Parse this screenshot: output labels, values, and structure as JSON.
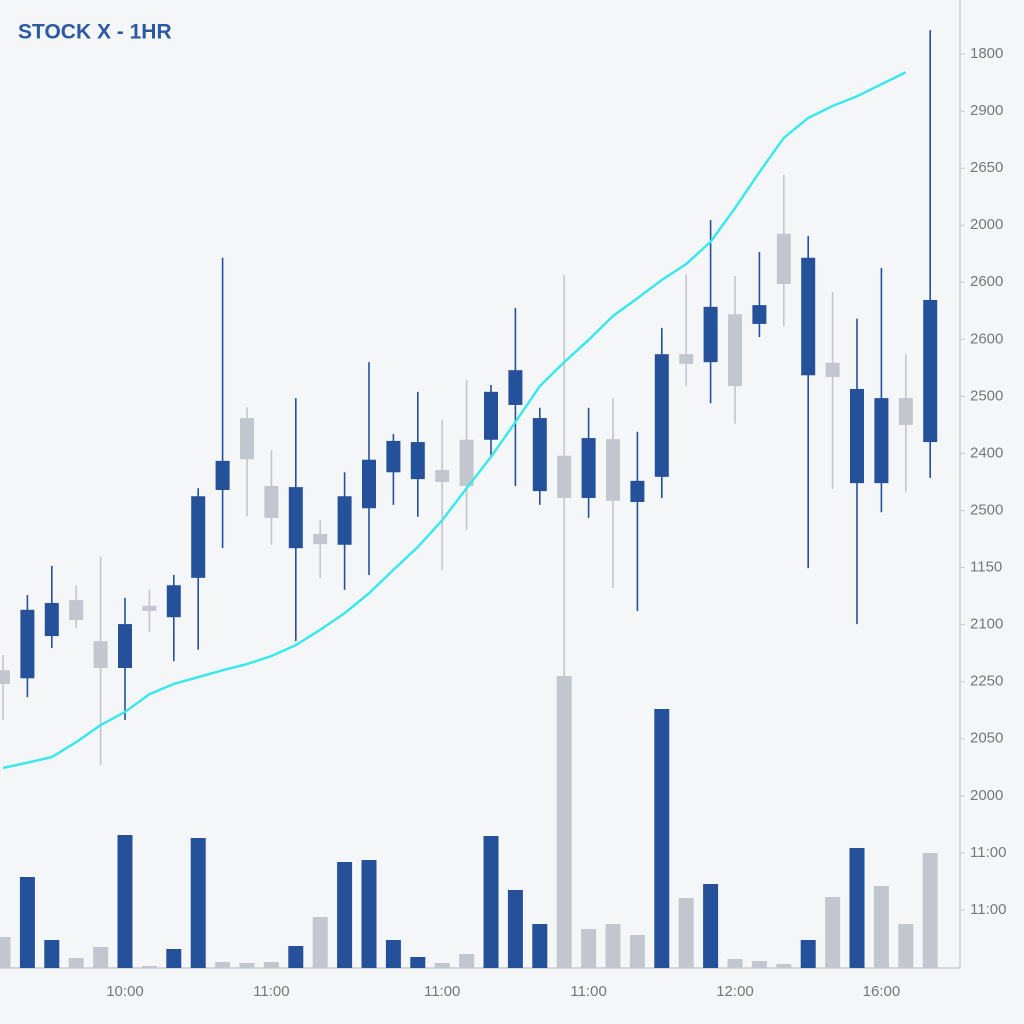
{
  "chart_data": {
    "type": "candlestick",
    "title": "STOCK X - 1HR",
    "categories": [
      null,
      null,
      null,
      null,
      null,
      "10:00",
      null,
      null,
      null,
      null,
      null,
      "11:00",
      null,
      null,
      null,
      null,
      null,
      null,
      "11:00",
      null,
      null,
      null,
      null,
      null,
      "11:00",
      null,
      null,
      null,
      null,
      null,
      "12:00",
      null,
      null,
      null,
      null,
      null,
      "16:00",
      null,
      null
    ],
    "open": [
      5.2,
      5.06,
      5.8,
      6.43,
      5.71,
      5.24,
      6.33,
      6.13,
      6.82,
      8.36,
      9.62,
      8.43,
      7.34,
      7.59,
      7.4,
      8.04,
      8.67,
      8.55,
      8.71,
      9.24,
      9.24,
      9.85,
      8.34,
      8.96,
      8.22,
      9.25,
      8.15,
      8.59,
      10.74,
      10.6,
      11.44,
      11.27,
      12.85,
      10.37,
      10.59,
      8.48,
      8.48,
      9.97,
      9.2
    ],
    "high": [
      5.47,
      6.52,
      7.03,
      6.69,
      7.19,
      6.47,
      6.61,
      6.87,
      8.39,
      12.43,
      9.81,
      9.06,
      9.97,
      7.83,
      8.67,
      10.6,
      9.34,
      10.08,
      9.59,
      10.29,
      10.2,
      11.55,
      9.8,
      12.13,
      9.8,
      9.97,
      9.38,
      11.2,
      12.14,
      13.09,
      12.11,
      12.53,
      13.88,
      12.81,
      11.83,
      11.36,
      12.25,
      10.74,
      16.42
    ],
    "low": [
      4.33,
      4.73,
      5.59,
      5.94,
      3.54,
      4.33,
      5.87,
      5.36,
      5.56,
      7.34,
      7.9,
      7.4,
      5.71,
      6.82,
      6.61,
      6.87,
      8.1,
      7.89,
      6.96,
      7.66,
      8.94,
      8.43,
      8.1,
      0.12,
      7.87,
      6.64,
      6.24,
      8.22,
      10.18,
      9.88,
      9.52,
      11.04,
      11.23,
      6.99,
      8.38,
      6.01,
      7.97,
      8.32,
      8.57
    ],
    "close": [
      4.96,
      6.26,
      6.38,
      6.08,
      5.24,
      6.01,
      6.24,
      6.69,
      8.25,
      8.87,
      8.9,
      7.87,
      8.41,
      7.41,
      8.25,
      8.89,
      9.22,
      9.2,
      8.5,
      8.43,
      10.08,
      10.46,
      9.62,
      8.22,
      9.27,
      8.17,
      8.52,
      10.74,
      10.57,
      11.57,
      10.18,
      11.6,
      11.97,
      12.43,
      10.34,
      10.13,
      9.97,
      9.5,
      11.69
    ],
    "up_color": "#24519a",
    "down_color": "#c2c6ce",
    "ma": [
      3.49,
      3.58,
      3.68,
      3.94,
      4.24,
      4.47,
      4.78,
      4.96,
      5.08,
      5.2,
      5.31,
      5.45,
      5.64,
      5.91,
      6.2,
      6.55,
      6.96,
      7.36,
      7.83,
      8.39,
      8.94,
      9.55,
      10.18,
      10.6,
      10.99,
      11.41,
      11.72,
      12.04,
      12.32,
      12.71,
      13.3,
      13.93,
      14.53,
      14.88,
      15.09,
      15.26,
      15.47,
      15.68,
      null
    ],
    "ma_color": "#3ce8ec",
    "volume": [
      31,
      91,
      28,
      10,
      21,
      133,
      2,
      19,
      130,
      6,
      5,
      6,
      22,
      51,
      106,
      108,
      28,
      11,
      5,
      14,
      132,
      78,
      44,
      292,
      39,
      44,
      33,
      259,
      70,
      84,
      9,
      7,
      4,
      28,
      71,
      120,
      82,
      44,
      115
    ],
    "volume_colors": [
      "#c2c6ce",
      "#24519a",
      "#24519a",
      "#c2c6ce",
      "#c2c6ce",
      "#24519a",
      "#c2c6ce",
      "#24519a",
      "#24519a",
      "#c2c6ce",
      "#c2c6ce",
      "#c2c6ce",
      "#24519a",
      "#c2c6ce",
      "#24519a",
      "#24519a",
      "#24519a",
      "#24519a",
      "#c2c6ce",
      "#c2c6ce",
      "#24519a",
      "#24519a",
      "#24519a",
      "#c2c6ce",
      "#c2c6ce",
      "#c2c6ce",
      "#c2c6ce",
      "#24519a",
      "#c2c6ce",
      "#24519a",
      "#c2c6ce",
      "#c2c6ce",
      "#c2c6ce",
      "#24519a",
      "#c2c6ce",
      "#24519a",
      "#c2c6ce",
      "#c2c6ce",
      "#c2c6ce"
    ],
    "volume_ylim": [
      0,
      300
    ],
    "ylim": [
      0,
      17
    ],
    "yticks": [
      {
        "value": 16,
        "label": "1800"
      },
      {
        "value": 15,
        "label": "2900"
      },
      {
        "value": 14,
        "label": "2650"
      },
      {
        "value": 13,
        "label": "2000"
      },
      {
        "value": 12,
        "label": "2600"
      },
      {
        "value": 11,
        "label": "2600"
      },
      {
        "value": 10,
        "label": "2500"
      },
      {
        "value": 9,
        "label": "2400"
      },
      {
        "value": 8,
        "label": "2500"
      },
      {
        "value": 7,
        "label": "1150"
      },
      {
        "value": 6,
        "label": "2100"
      },
      {
        "value": 5,
        "label": "2250"
      },
      {
        "value": 4,
        "label": "2050"
      },
      {
        "value": 3,
        "label": "2000"
      },
      {
        "value": 2,
        "label": "11:00"
      },
      {
        "value": 1,
        "label": "11:00"
      }
    ]
  }
}
